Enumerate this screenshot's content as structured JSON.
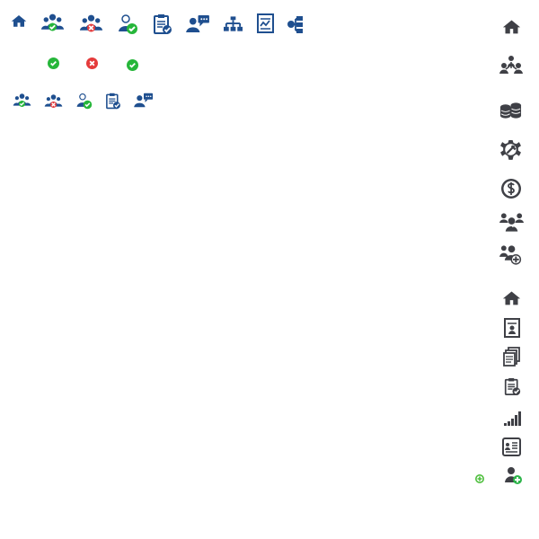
{
  "colors": {
    "blue_icon": "#1f4f8f",
    "dark_icon": "#3f4046",
    "success": "#26b63a",
    "danger": "#e53b3b",
    "background": "#ffffff"
  },
  "icon_sheet": {
    "top_row": [
      "home-icon",
      "group-approved-icon",
      "group-rejected-icon",
      "user-approved-icon",
      "clipboard-check-icon",
      "user-message-icon",
      "org-chart-icon",
      "report-chart-icon",
      "hierarchy-nodes-icon"
    ],
    "status_row": [
      "success-check-icon",
      "error-x-icon",
      "success-check-icon"
    ],
    "small_row": [
      "group-approved-icon",
      "group-rejected-icon",
      "user-approved-icon",
      "clipboard-check-icon",
      "user-message-icon"
    ],
    "right_column_group_a": [
      "home-icon",
      "users-network-icon",
      "database-icon",
      "gear-wrench-icon",
      "dollar-coin-icon",
      "team-lead-icon",
      "group-add-icon"
    ],
    "right_column_group_b": [
      "home-icon",
      "document-user-icon",
      "documents-icon",
      "clipboard-check-icon",
      "signal-bars-icon",
      "id-card-icon",
      "user-add-icon",
      "small-add-icon"
    ]
  }
}
